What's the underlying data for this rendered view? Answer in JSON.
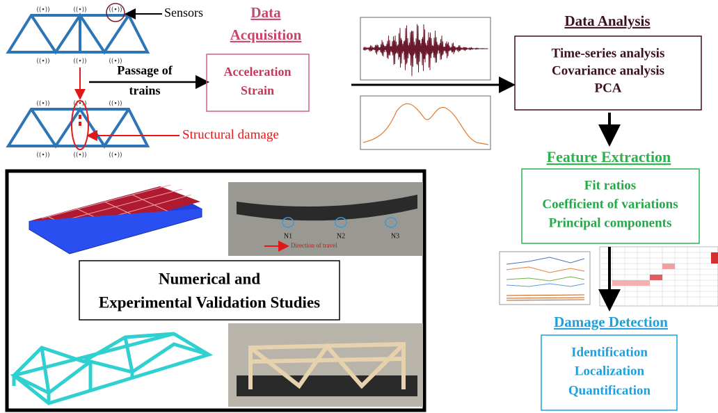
{
  "sensing": {
    "sensors_label": "Sensors",
    "passage_label": [
      "Passage of",
      "trains"
    ],
    "damage_label": "Structural damage"
  },
  "acquisition": {
    "title": [
      "Data",
      "Acquisition"
    ],
    "items": [
      "Acceleration",
      "Strain"
    ]
  },
  "analysis": {
    "title": "Data Analysis",
    "items": [
      "Time-series analysis",
      "Covariance analysis",
      "PCA"
    ]
  },
  "features": {
    "title": "Feature Extraction",
    "items": [
      "Fit ratios",
      "Coefficient of variations",
      "Principal components"
    ]
  },
  "detection": {
    "title": "Damage Detection",
    "items": [
      "Identification",
      "Localization",
      "Quantification"
    ]
  },
  "validation": {
    "title": [
      "Numerical and",
      "Experimental Validation Studies"
    ],
    "nodes": [
      "N1",
      "N2",
      "N3"
    ],
    "direction": "Direction of travel"
  }
}
